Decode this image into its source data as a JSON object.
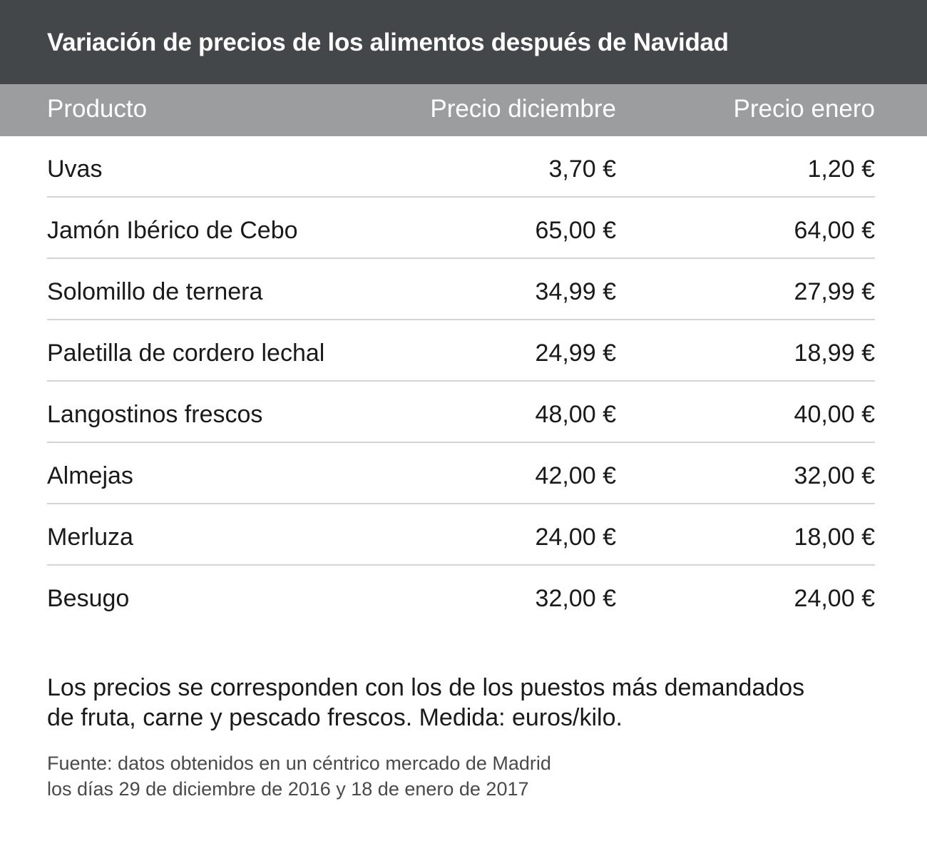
{
  "chart_data": {
    "type": "table",
    "title": "Variación de precios de los alimentos después de Navidad",
    "columns": [
      "Producto",
      "Precio diciembre",
      "Precio enero"
    ],
    "rows": [
      {
        "product": "Uvas",
        "dec": "3,70 €",
        "jan": "1,20 €"
      },
      {
        "product": "Jamón Ibérico de Cebo",
        "dec": "65,00 €",
        "jan": "64,00 €"
      },
      {
        "product": "Solomillo de ternera",
        "dec": "34,99 €",
        "jan": "27,99 €"
      },
      {
        "product": "Paletilla de cordero lechal",
        "dec": "24,99 €",
        "jan": "18,99 €"
      },
      {
        "product": "Langostinos frescos",
        "dec": "48,00 €",
        "jan": "40,00 €"
      },
      {
        "product": "Almejas",
        "dec": "42,00 €",
        "jan": "32,00 €"
      },
      {
        "product": "Merluza",
        "dec": "24,00 €",
        "jan": "18,00 €"
      },
      {
        "product": "Besugo",
        "dec": "32,00 €",
        "jan": "24,00 €"
      }
    ],
    "note_lines": [
      "Los precios se corresponden con los de los puestos más demandados",
      "de fruta, carne y pescado frescos. Medida: euros/kilo."
    ],
    "source_lines": [
      "Fuente: datos obtenidos en un céntrico mercado de Madrid",
      "los días 29 de diciembre de 2016 y 18 de enero de 2017"
    ]
  },
  "colors": {
    "title_background": "#43474a",
    "header_background": "#9b9d9f",
    "divider": "#d4d4d4"
  }
}
